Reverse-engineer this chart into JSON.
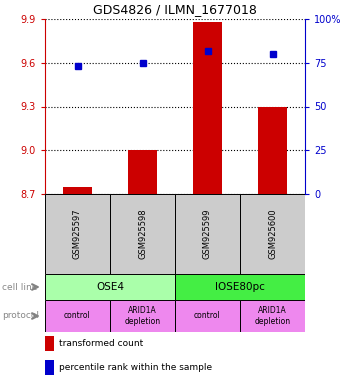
{
  "title": "GDS4826 / ILMN_1677018",
  "samples": [
    "GSM925597",
    "GSM925598",
    "GSM925599",
    "GSM925600"
  ],
  "bar_values": [
    8.75,
    9.0,
    9.88,
    9.3
  ],
  "percentile_values": [
    73,
    75,
    82,
    80
  ],
  "ylim_left": [
    8.7,
    9.9
  ],
  "ylim_right": [
    0,
    100
  ],
  "yticks_left": [
    8.7,
    9.0,
    9.3,
    9.6,
    9.9
  ],
  "yticks_right": [
    0,
    25,
    50,
    75,
    100
  ],
  "ytick_labels_right": [
    "0",
    "25",
    "50",
    "75",
    "100%"
  ],
  "bar_color": "#cc0000",
  "dot_color": "#0000cc",
  "cell_lines": [
    "OSE4",
    "IOSE80pc"
  ],
  "cell_line_spans": [
    [
      0,
      2
    ],
    [
      2,
      4
    ]
  ],
  "cell_line_colors": [
    "#aaffaa",
    "#44ee44"
  ],
  "protocols": [
    "control",
    "ARID1A\ndepletion",
    "control",
    "ARID1A\ndepletion"
  ],
  "protocol_color": "#ee88ee",
  "sample_box_color": "#cccccc",
  "left_axis_color": "#cc0000",
  "right_axis_color": "#0000cc",
  "legend_items": [
    {
      "color": "#cc0000",
      "label": "transformed count"
    },
    {
      "color": "#0000cc",
      "label": "percentile rank within the sample"
    }
  ]
}
